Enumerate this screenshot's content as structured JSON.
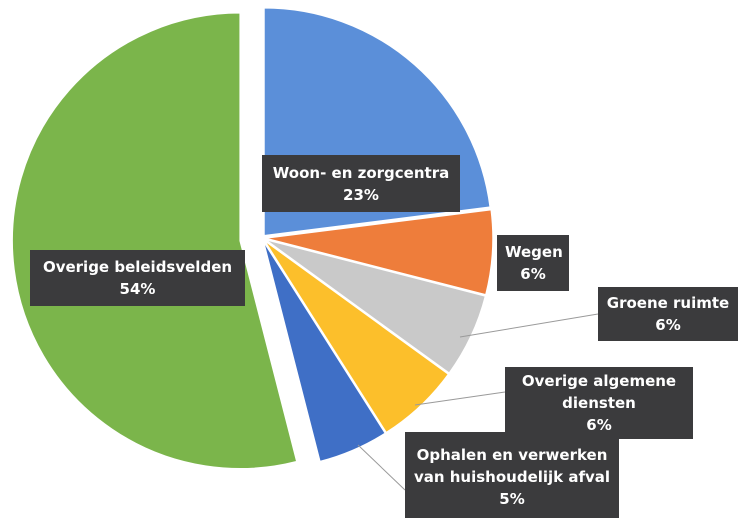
{
  "chart_data": {
    "type": "pie",
    "categories": [
      "Woon- en zorgcentra",
      "Wegen",
      "Groene ruimte",
      "Overige algemene diensten",
      "Ophalen en verwerken van huishoudelijk afval",
      "Overige beleidsvelden"
    ],
    "values": [
      23,
      6,
      6,
      6,
      5,
      54
    ],
    "value_labels": [
      "23%",
      "6%",
      "6%",
      "6%",
      "5%",
      "54%"
    ],
    "colors": [
      "#5b8fd9",
      "#ee7d3b",
      "#c9c9c9",
      "#fcbf2b",
      "#3f6fc6",
      "#7bb54b"
    ]
  }
}
